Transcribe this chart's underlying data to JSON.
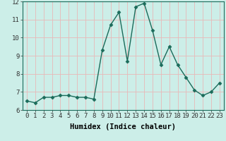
{
  "x": [
    0,
    1,
    2,
    3,
    4,
    5,
    6,
    7,
    8,
    9,
    10,
    11,
    12,
    13,
    14,
    15,
    16,
    17,
    18,
    19,
    20,
    21,
    22,
    23
  ],
  "y": [
    6.5,
    6.4,
    6.7,
    6.7,
    6.8,
    6.8,
    6.7,
    6.7,
    6.6,
    9.3,
    10.7,
    11.4,
    8.7,
    11.7,
    11.9,
    10.4,
    8.5,
    9.5,
    8.5,
    7.8,
    7.1,
    6.8,
    7.0,
    7.5
  ],
  "xlabel": "Humidex (Indice chaleur)",
  "ylim": [
    6,
    12
  ],
  "xlim": [
    -0.5,
    23.5
  ],
  "yticks": [
    6,
    7,
    8,
    9,
    10,
    11,
    12
  ],
  "xticks": [
    0,
    1,
    2,
    3,
    4,
    5,
    6,
    7,
    8,
    9,
    10,
    11,
    12,
    13,
    14,
    15,
    16,
    17,
    18,
    19,
    20,
    21,
    22,
    23
  ],
  "line_color": "#1a6b5a",
  "marker": "D",
  "marker_size": 2.5,
  "bg_color": "#cceee8",
  "grid_color": "#e8b8b8",
  "label_fontsize": 7.5,
  "tick_fontsize": 6.5,
  "linewidth": 1.0
}
